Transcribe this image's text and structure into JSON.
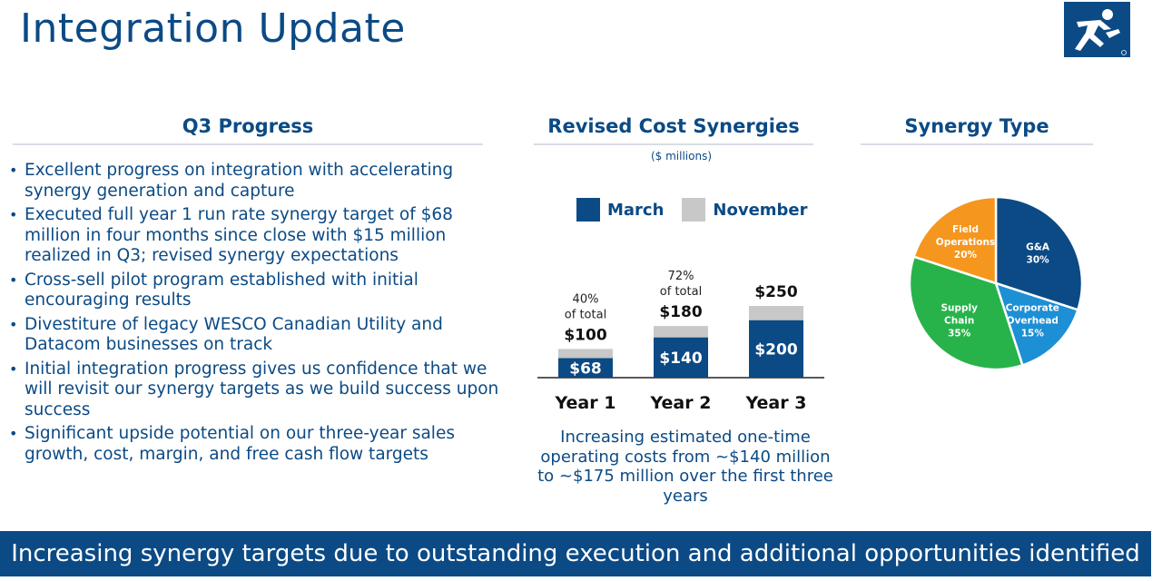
{
  "page": {
    "title": "Integration Update",
    "banner": "Increasing synergy targets due to outstanding execution and additional opportunities identified"
  },
  "progress": {
    "heading": "Q3 Progress",
    "bullets": [
      "Excellent progress on integration with accelerating synergy generation and capture",
      "Executed full year 1 run rate synergy target of $68 million in four months since close with $15 million realized in Q3; revised synergy expectations",
      "Cross-sell pilot program established with initial encouraging results",
      "Divestiture of legacy WESCO Canadian Utility and Datacom businesses on track",
      "Initial integration progress gives us confidence that we will revisit our synergy targets as we build success upon success",
      "Significant upside potential on our three-year sales growth, cost, margin, and free cash flow targets"
    ]
  },
  "synergies": {
    "heading": "Revised Cost Synergies",
    "units": "($ millions)",
    "legend_march": "March",
    "legend_november": "November",
    "caption": "Increasing estimated one-time operating costs from ~$140 million to ~$175 million over the first three years"
  },
  "synergy_type": {
    "heading": "Synergy Type"
  },
  "colors": {
    "navy": "#0b4a85",
    "gray": "#c8c8c8",
    "blue": "#1d8fd4",
    "green": "#27b34a",
    "orange": "#f5961e"
  },
  "chart_data": [
    {
      "type": "bar",
      "title": "Revised Cost Synergies",
      "subtitle": "($ millions)",
      "categories": [
        "Year 1",
        "Year 2",
        "Year 3"
      ],
      "series": [
        {
          "name": "March",
          "values": [
            68,
            140,
            200
          ],
          "labels": [
            "$68",
            "$140",
            "$200"
          ]
        },
        {
          "name": "November",
          "values": [
            100,
            180,
            250
          ],
          "labels": [
            "$100",
            "$180",
            "$250"
          ]
        }
      ],
      "annotations": [
        {
          "category": "Year 1",
          "line1": "40%",
          "line2": "of total"
        },
        {
          "category": "Year 2",
          "line1": "72%",
          "line2": "of total"
        }
      ],
      "ylim": [
        0,
        250
      ],
      "legend": "top",
      "grid": false
    },
    {
      "type": "pie",
      "title": "Synergy Type",
      "slices": [
        {
          "lines": [
            "G&A"
          ],
          "pct": "30%",
          "value": 30,
          "color": "#0b4a85"
        },
        {
          "lines": [
            "Corporate",
            "Overhead"
          ],
          "pct": "15%",
          "value": 15,
          "color": "#1d8fd4"
        },
        {
          "lines": [
            "Supply",
            "Chain"
          ],
          "pct": "35%",
          "value": 35,
          "color": "#27b34a"
        },
        {
          "lines": [
            "Field",
            "Operations"
          ],
          "pct": "20%",
          "value": 20,
          "color": "#f5961e"
        }
      ]
    }
  ]
}
